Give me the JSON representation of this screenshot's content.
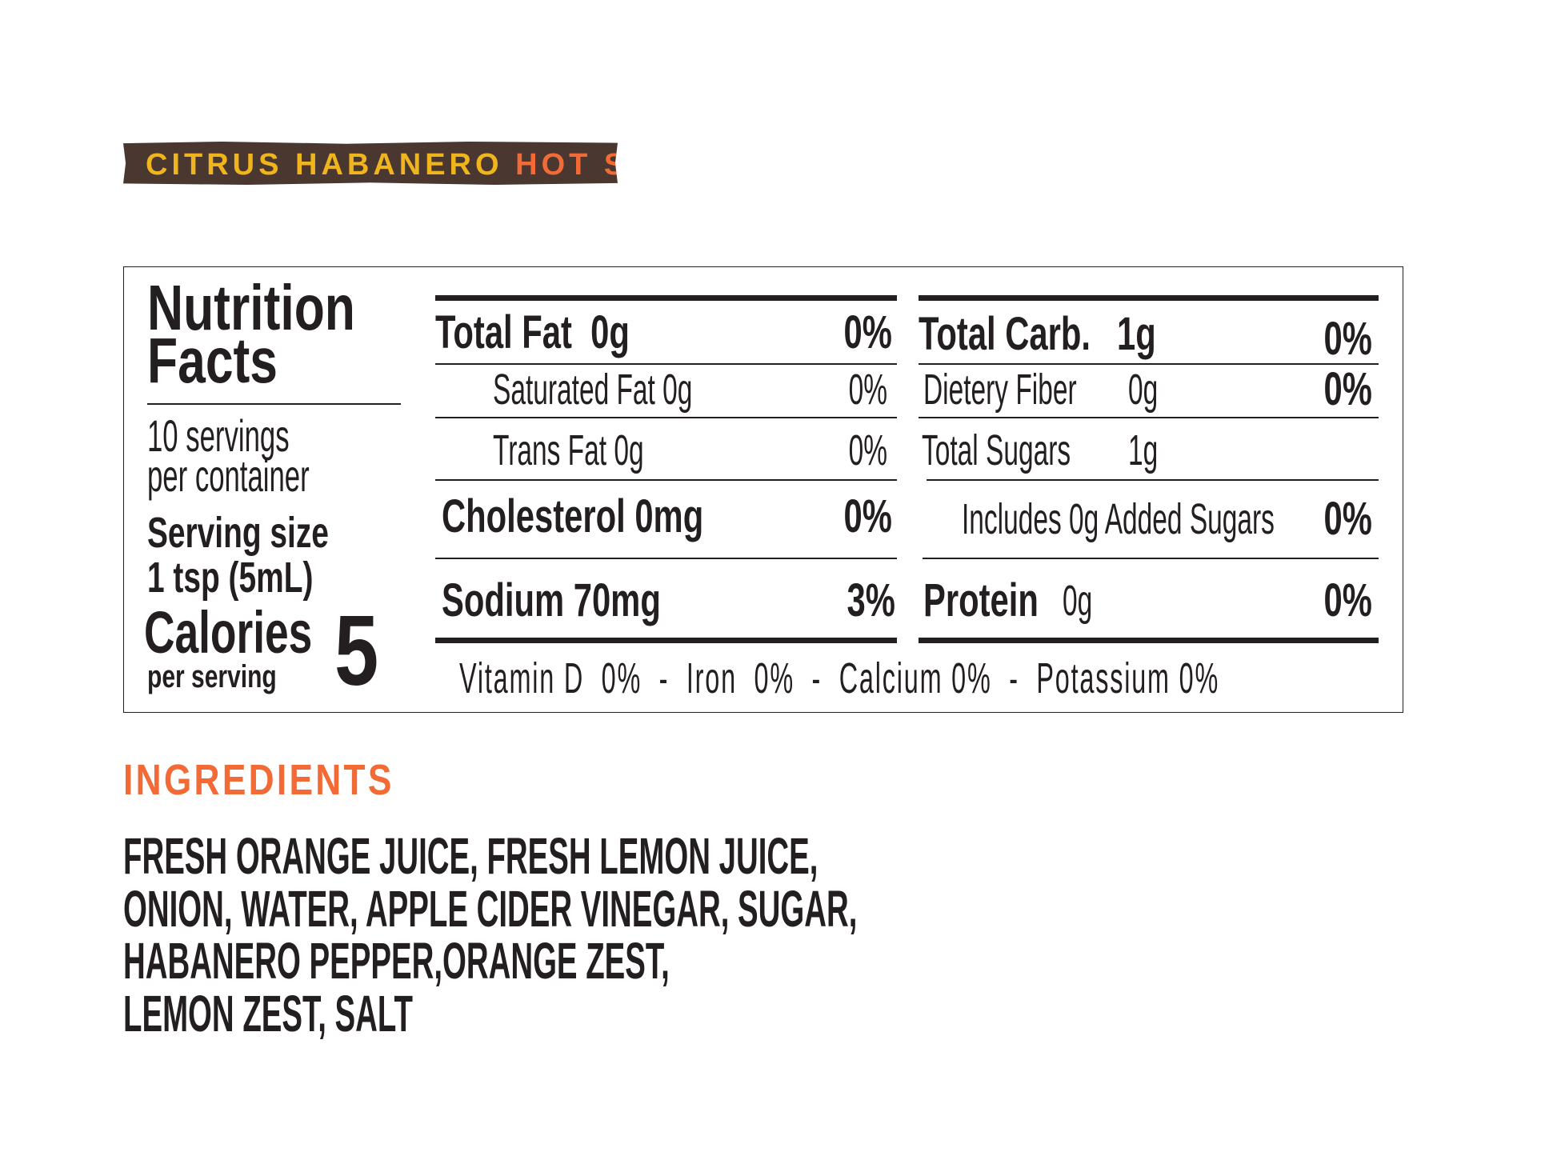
{
  "banner": {
    "part1": "CITRUS HABANERO",
    "part2": "HOT SAUCE",
    "color1": "#f0b51c",
    "color2": "#f26b36",
    "background": "#4a3730"
  },
  "nutrition": {
    "title_line1": "Nutrition",
    "title_line2": "Facts",
    "servings_line1": "10 servings",
    "servings_line2": "per container",
    "serving_size_label": "Serving size",
    "serving_size_value": "1 tsp (5mL)",
    "calories_label": "Calories",
    "calories_sub": "per serving",
    "calories_value": "5",
    "left_rows": [
      {
        "label": "Total Fat",
        "amount": "0g",
        "dv": "0%"
      },
      {
        "label": "Saturated Fat",
        "amount": "0g",
        "dv": "0%"
      },
      {
        "label": "Trans Fat",
        "amount": "0g",
        "dv": "0%"
      },
      {
        "label": "Cholesterol",
        "amount": "0mg",
        "dv": "0%"
      },
      {
        "label": "Sodium",
        "amount": "70mg",
        "dv": "3%"
      }
    ],
    "right_rows": [
      {
        "label": "Total Carb.",
        "amount": "1g",
        "dv": "0%"
      },
      {
        "label": "Dietery Fiber",
        "amount": "0g",
        "dv": "0%"
      },
      {
        "label": "Total Sugars",
        "amount": "1g",
        "dv": ""
      },
      {
        "label": "Includes",
        "amount": "0g",
        "label2": "Added Sugars",
        "dv": "0%"
      },
      {
        "label": "Protein",
        "amount": "0g",
        "dv": "0%"
      }
    ],
    "vitamins": "Vitamin D  0%  -  Iron  0%  -  Calcium 0%  -  Potassium 0%"
  },
  "ingredients": {
    "title": "INGREDIENTS",
    "title_color": "#f26b36",
    "lines": [
      "FRESH ORANGE JUICE, FRESH LEMON JUICE,",
      "ONION, WATER, APPLE CIDER VINEGAR, SUGAR,",
      "HABANERO PEPPER,ORANGE ZEST,",
      "LEMON ZEST, SALT"
    ]
  }
}
